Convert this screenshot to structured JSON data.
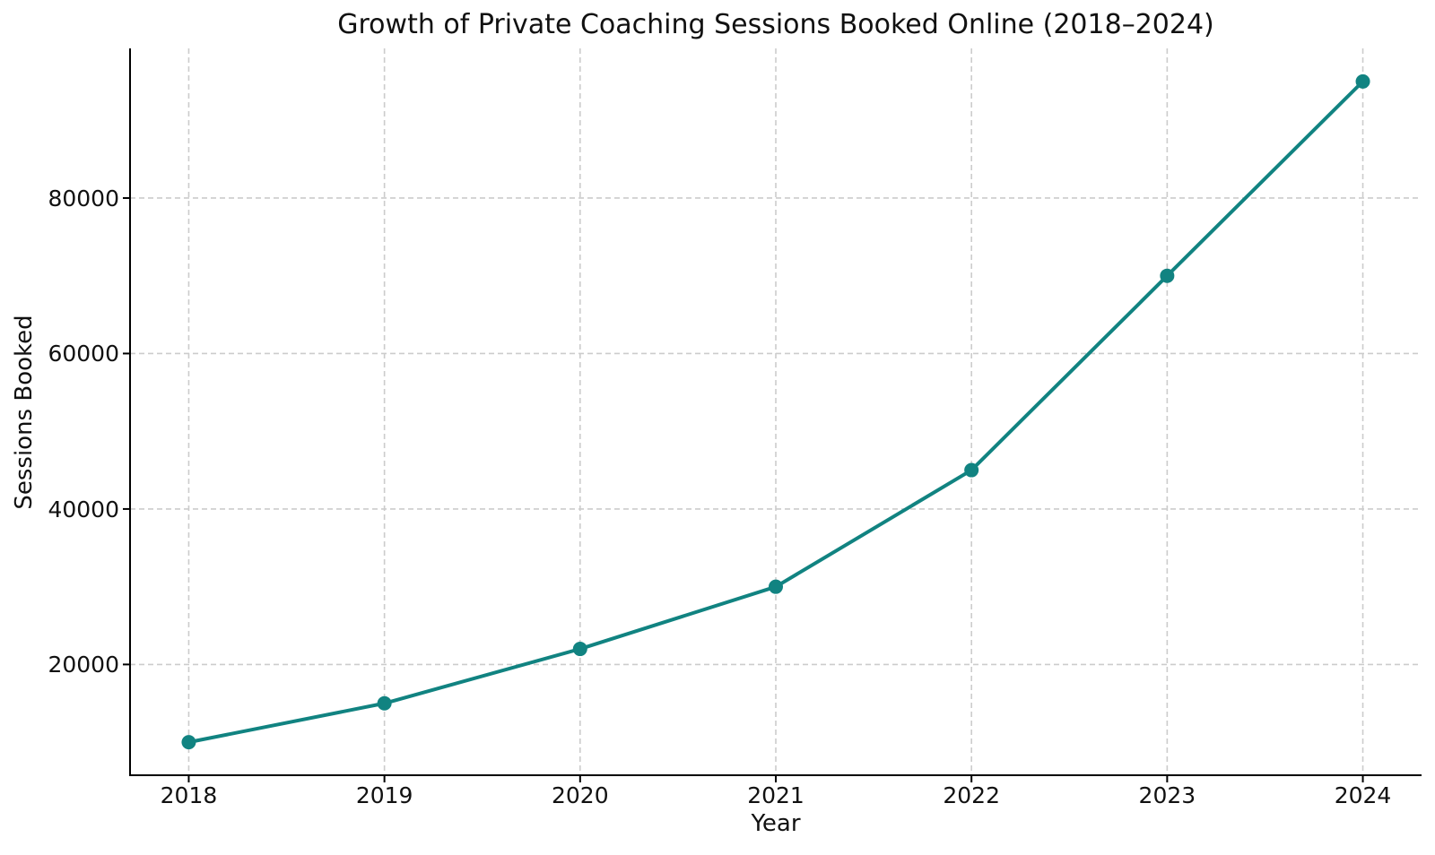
{
  "chart_data": {
    "type": "line",
    "title": "Growth of Private Coaching Sessions Booked Online (2018–2024)",
    "xlabel": "Year",
    "ylabel": "Sessions Booked",
    "x": [
      2018,
      2019,
      2020,
      2021,
      2022,
      2023,
      2024
    ],
    "series": [
      {
        "name": "Sessions Booked",
        "values": [
          10000,
          15000,
          22000,
          30000,
          45000,
          70000,
          95000
        ]
      }
    ],
    "xticks": [
      2018,
      2019,
      2020,
      2021,
      2022,
      2023,
      2024
    ],
    "yticks": [
      20000,
      40000,
      60000,
      80000
    ],
    "xlim": [
      2017.7,
      2024.3
    ],
    "ylim": [
      5750,
      99250
    ],
    "grid": true,
    "grid_style": "dashed",
    "legend_position": "none",
    "marker": "circle",
    "colors": {
      "line": "#118381",
      "marker": "#118381",
      "grid": "#cccccc",
      "spine": "#000000",
      "text": "#111111"
    }
  }
}
